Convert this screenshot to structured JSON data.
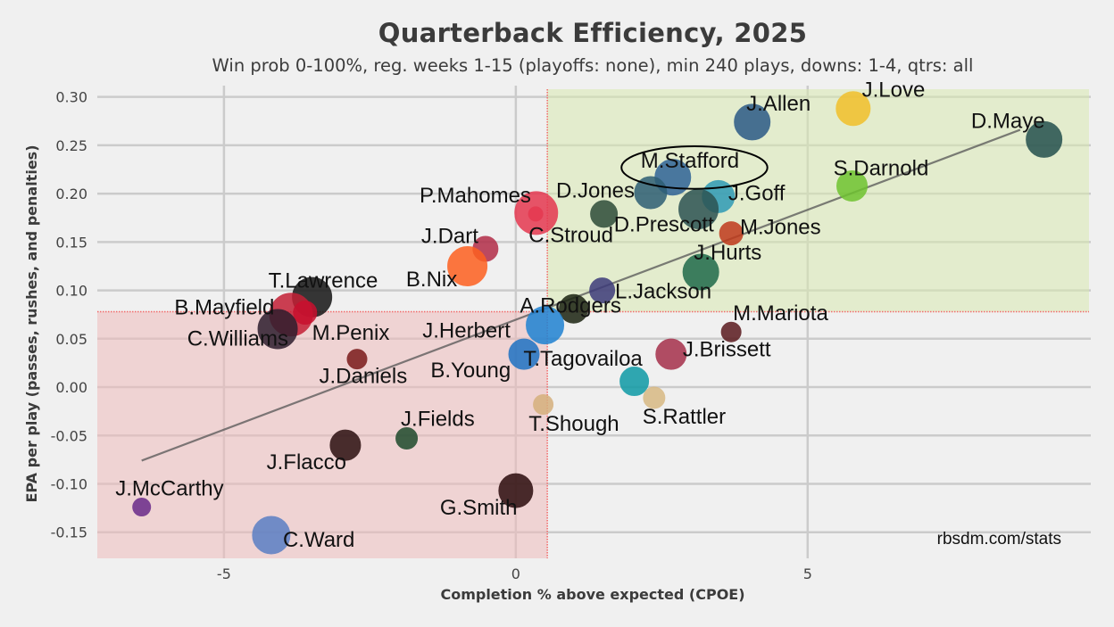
{
  "chart_data": {
    "type": "scatter",
    "title": "Quarterback Efficiency, 2025",
    "subtitle": "Win prob 0-100%, reg. weeks 1-15 (playoffs: none), min 240 plays, downs: 1-4, qtrs: all",
    "xlabel": "Completion % above expected (CPOE)",
    "ylabel": "EPA per play (passes, rushes, and penalties)",
    "xlim": [
      -7.17,
      9.82
    ],
    "ylim": [
      -0.177,
      0.308
    ],
    "xticks": [
      -5,
      0,
      5
    ],
    "xtick_labels": [
      "-5",
      "0",
      "5"
    ],
    "yticks": [
      0.3,
      0.25,
      0.2,
      0.15,
      0.1,
      0.05,
      0.0,
      -0.05,
      -0.1,
      -0.15
    ],
    "ytick_labels": [
      "0.30",
      "0.25",
      "0.20",
      "0.15",
      "0.10",
      "0.05",
      "0.00",
      "-0.05",
      "-0.10",
      "-0.15"
    ],
    "grid": true,
    "mean_cpoe": 0.54,
    "mean_epa": 0.078,
    "quadrants": {
      "good": {
        "color": "#d8eab0",
        "desc": "above-average CPOE and EPA"
      },
      "bad": {
        "color": "#efbcbc",
        "desc": "below-average CPOE and EPA"
      }
    },
    "mean_line_color": "#f26a6a",
    "trendline": {
      "x": [
        -6.41,
        8.64
      ],
      "y": [
        -0.076,
        0.266
      ],
      "color": "#555"
    },
    "highlight": {
      "label": "M.Stafford",
      "cx": 3.06,
      "cy": 0.227,
      "w": 2.5,
      "h": 0.044
    },
    "credit": "rbsdm.com/stats",
    "points": [
      {
        "name": "J.Allen",
        "cpoe": 4.05,
        "epa": 0.274,
        "size": 20,
        "color": "#2b5a86",
        "lx": -0.1,
        "ly": 0.012
      },
      {
        "name": "J.Love",
        "cpoe": 5.78,
        "epa": 0.288,
        "size": 19,
        "color": "#f2c02a",
        "lx": 0.15,
        "ly": 0.012
      },
      {
        "name": "D.Maye",
        "cpoe": 9.05,
        "epa": 0.256,
        "size": 20,
        "color": "#24504d",
        "lx": -1.25,
        "ly": 0.012
      },
      {
        "name": "M.Stafford",
        "cpoe": 2.69,
        "epa": 0.217,
        "size": 20,
        "color": "#2f6396",
        "lx": -0.55,
        "ly": 0.01
      },
      {
        "name": "",
        "cpoe": 2.31,
        "epa": 0.201,
        "size": 18,
        "color": "#2d5e74",
        "lx": 0,
        "ly": 0
      },
      {
        "name": "J.Goff",
        "cpoe": 3.47,
        "epa": 0.197,
        "size": 18,
        "color": "#2f9ab5",
        "lx": 0.17,
        "ly": -0.004
      },
      {
        "name": "D.Prescott",
        "cpoe": 3.13,
        "epa": 0.184,
        "size": 22,
        "color": "#2c5352",
        "lx": -1.45,
        "ly": -0.023
      },
      {
        "name": "S.Darnold",
        "cpoe": 5.76,
        "epa": 0.208,
        "size": 17,
        "color": "#6fc330",
        "lx": -0.32,
        "ly": 0.011
      },
      {
        "name": "D.Jones",
        "cpoe": 1.51,
        "epa": 0.179,
        "size": 15,
        "color": "#2e4c38",
        "lx": -0.82,
        "ly": 0.017
      },
      {
        "name": "M.Jones",
        "cpoe": 3.69,
        "epa": 0.159,
        "size": 13,
        "color": "#c03a1c",
        "lx": 0.15,
        "ly": -0.001
      },
      {
        "name": "P.Mahomes",
        "cpoe": 0.35,
        "epa": 0.18,
        "size": 24,
        "color": "#e53850",
        "lx": -2.0,
        "ly": 0.011
      },
      {
        "name": "C.Stroud",
        "cpoe": 0.34,
        "epa": 0.179,
        "size": 8,
        "color": "#e53850",
        "lx": -0.12,
        "ly": -0.029
      },
      {
        "name": "J.Dart",
        "cpoe": -0.52,
        "epa": 0.143,
        "size": 14,
        "color": "#b22d48",
        "lx": -1.1,
        "ly": 0.006
      },
      {
        "name": "B.Nix",
        "cpoe": -0.83,
        "epa": 0.125,
        "size": 22,
        "color": "#fd6020",
        "lx": -1.05,
        "ly": -0.021
      },
      {
        "name": "J.Hurts",
        "cpoe": 3.17,
        "epa": 0.119,
        "size": 20,
        "color": "#1f6a4a",
        "lx": -0.12,
        "ly": 0.013
      },
      {
        "name": "L.Jackson",
        "cpoe": 1.48,
        "epa": 0.1,
        "size": 14,
        "color": "#3d3b7a",
        "lx": 0.22,
        "ly": -0.008
      },
      {
        "name": "T.Lawrence",
        "cpoe": -3.49,
        "epa": 0.093,
        "size": 22,
        "color": "#151515",
        "lx": -0.75,
        "ly": 0.01
      },
      {
        "name": "A.Rodgers",
        "cpoe": 0.99,
        "epa": 0.081,
        "size": 16,
        "color": "#1c2412",
        "lx": -0.92,
        "ly": -0.004
      },
      {
        "name": "B.Mayfield",
        "cpoe": -3.85,
        "epa": 0.075,
        "size": 24,
        "color": "#c42036",
        "lx": -2.0,
        "ly": -0.0
      },
      {
        "name": "M.Penix",
        "cpoe": -3.61,
        "epa": 0.077,
        "size": 13,
        "color": "#c8102e",
        "lx": 0.12,
        "ly": -0.028
      },
      {
        "name": "C.Williams",
        "cpoe": -4.08,
        "epa": 0.06,
        "size": 22,
        "color": "#2e1e2e",
        "lx": -1.55,
        "ly": -0.017
      },
      {
        "name": "J.Herbert",
        "cpoe": 0.5,
        "epa": 0.064,
        "size": 21,
        "color": "#1f82d2",
        "lx": -2.1,
        "ly": -0.013
      },
      {
        "name": "M.Mariota",
        "cpoe": 3.69,
        "epa": 0.057,
        "size": 11,
        "color": "#5a1a1e",
        "lx": 0.03,
        "ly": 0.012
      },
      {
        "name": "B.Young",
        "cpoe": 0.14,
        "epa": 0.034,
        "size": 17,
        "color": "#1f72c3",
        "lx": -1.6,
        "ly": -0.024
      },
      {
        "name": "J.Brissett",
        "cpoe": 2.66,
        "epa": 0.034,
        "size": 17,
        "color": "#a6304b",
        "lx": 0.2,
        "ly": -0.002
      },
      {
        "name": "J.Daniels",
        "cpoe": -2.72,
        "epa": 0.029,
        "size": 11,
        "color": "#7a1a1a",
        "lx": -0.65,
        "ly": -0.025
      },
      {
        "name": "T.Tagovailoa",
        "cpoe": 2.03,
        "epa": 0.006,
        "size": 16,
        "color": "#0e9aa5",
        "lx": -1.9,
        "ly": 0.016
      },
      {
        "name": "S.Rattler",
        "cpoe": 2.37,
        "epa": -0.011,
        "size": 12,
        "color": "#d8b983",
        "lx": -0.2,
        "ly": -0.027
      },
      {
        "name": "T.Shough",
        "cpoe": 0.47,
        "epa": -0.018,
        "size": 11,
        "color": "#d6b07d",
        "lx": -0.25,
        "ly": -0.027
      },
      {
        "name": "J.Fields",
        "cpoe": -1.87,
        "epa": -0.053,
        "size": 12,
        "color": "#1e4a2c",
        "lx": -0.1,
        "ly": 0.013
      },
      {
        "name": "J.Flacco",
        "cpoe": -2.92,
        "epa": -0.06,
        "size": 17,
        "color": "#2b0f10",
        "lx": -1.35,
        "ly": -0.025
      },
      {
        "name": "G.Smith",
        "cpoe": 0.0,
        "epa": -0.107,
        "size": 19,
        "color": "#2c0c0d",
        "lx": -1.3,
        "ly": -0.025
      },
      {
        "name": "J.McCarthy",
        "cpoe": -6.41,
        "epa": -0.124,
        "size": 10,
        "color": "#6a2a8a",
        "lx": -0.45,
        "ly": 0.012
      },
      {
        "name": "C.Ward",
        "cpoe": -4.19,
        "epa": -0.153,
        "size": 21,
        "color": "#5b7fc4",
        "lx": 0.2,
        "ly": -0.012
      }
    ]
  }
}
